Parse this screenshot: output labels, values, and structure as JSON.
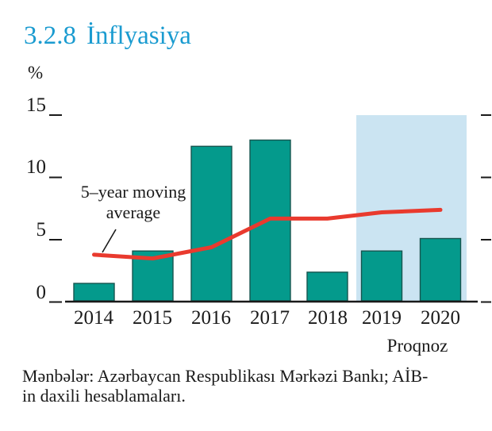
{
  "page": {
    "section_number": "3.2.8",
    "title": "İnflyasiya",
    "unit_label": "%",
    "forecast_label": "Proqnoz",
    "annotation_label": "5–year moving average",
    "source_lines": [
      "Mənbələr: Azərbaycan Respublikası Mərkəzi Bankı; AİB-",
      "in daxili hesablamaları."
    ]
  },
  "colors": {
    "title": "#1A9BD0",
    "bar": "#049A8C",
    "bar_outline": "#17554F",
    "line": "#E93A2E",
    "forecast_band": "#CBE4F2",
    "axis": "#1a1a1a"
  },
  "chart_data": {
    "type": "bar",
    "title": "3.2.8 İnflyasiya",
    "categories": [
      "2014",
      "2015",
      "2016",
      "2017",
      "2018",
      "2019",
      "2020"
    ],
    "series": [
      {
        "name": "İnflyasiya",
        "type": "bar",
        "values": [
          1.4,
          4.0,
          12.4,
          12.9,
          2.3,
          4.0,
          5.0
        ]
      },
      {
        "name": "5–year moving average",
        "type": "line",
        "values": [
          3.7,
          3.4,
          4.3,
          6.6,
          6.6,
          7.1,
          7.3
        ]
      }
    ],
    "xlabel": "",
    "ylabel": "%",
    "ylim": [
      0,
      15
    ],
    "yticks": [
      0,
      5,
      10,
      15
    ],
    "grid": false,
    "legend": "none",
    "forecast_categories": [
      "2019",
      "2020"
    ],
    "forecast_label": "Proqnoz",
    "annotation": "5–year moving average"
  }
}
